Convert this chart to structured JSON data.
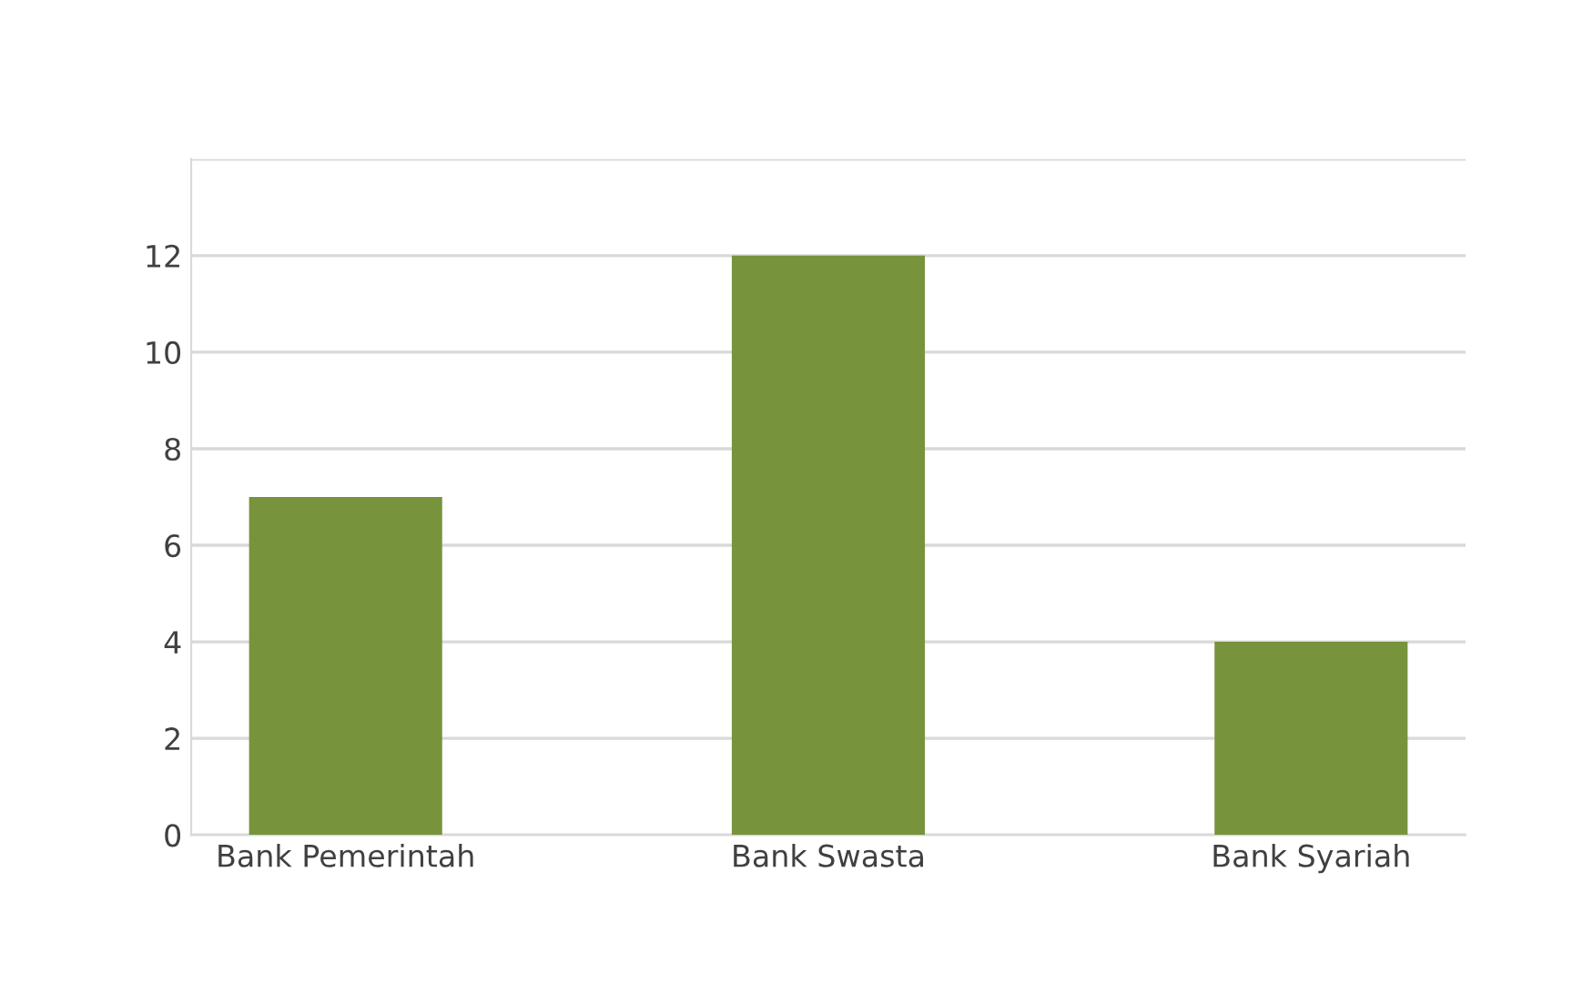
{
  "chart_data": {
    "type": "bar",
    "categories": [
      "Bank Pemerintah",
      "Bank Swasta",
      "Bank Syariah"
    ],
    "values": [
      7,
      12,
      4
    ],
    "color": "#77933c",
    "ylim": [
      0,
      14
    ],
    "yticks": [
      0,
      2,
      4,
      6,
      8,
      10,
      12,
      {
        "value": 14,
        "label": null
      }
    ],
    "grid": "y"
  }
}
